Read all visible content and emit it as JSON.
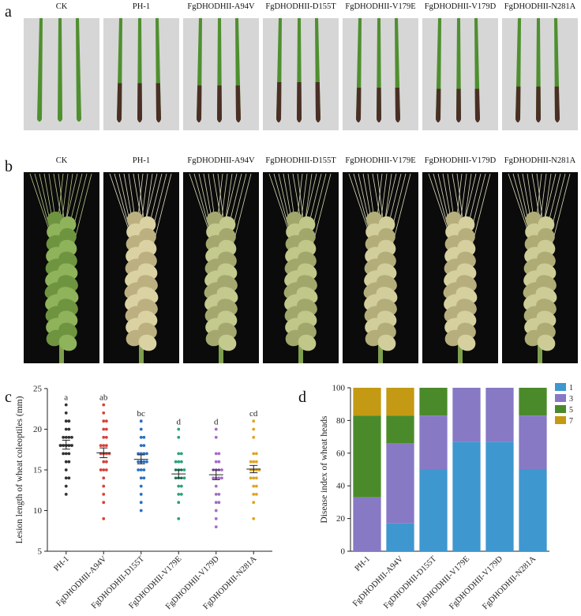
{
  "panels": {
    "a": "a",
    "b": "b",
    "c": "c",
    "d": "d"
  },
  "treatments": [
    "CK",
    "PH-1",
    "FgDHODHII-A94V",
    "FgDHODHII-D155T",
    "FgDHODHII-V179E",
    "FgDHODHII-V179D",
    "FgDHODHII-N281A"
  ],
  "colors": {
    "coleoptile_bg": "#d6d6d6",
    "spike_bg": "#0b0b0b",
    "level1": "#3f97cf",
    "level3": "#8779c4",
    "level5": "#4b8a2b",
    "level7": "#c49a14"
  },
  "coleoptile_lesion": [
    0,
    0.42,
    0.4,
    0.43,
    0.38,
    0.37,
    0.39
  ],
  "spike_bleaching": [
    0.0,
    0.85,
    0.6,
    0.55,
    0.75,
    0.8,
    0.7
  ],
  "chart_data": [
    {
      "type": "scatter",
      "title": "",
      "xlabel": "",
      "ylabel": "Lesion length of wheat coleoptiles (mm)",
      "ylim": [
        5,
        25
      ],
      "yticks": [
        5,
        10,
        15,
        20,
        25
      ],
      "categories": [
        "PH-1",
        "FgDHODHII-A94V",
        "FgDHODHII-D155T",
        "FgDHODHII-V179E",
        "FgDHODHII-V179D",
        "FgDHODHII-N281A"
      ],
      "colors": [
        "#333333",
        "#d9403a",
        "#2b6fc0",
        "#2aa37a",
        "#a56cc8",
        "#e0a420"
      ],
      "letters": [
        "a",
        "ab",
        "bc",
        "d",
        "d",
        "cd"
      ],
      "means": [
        18.1,
        17.1,
        16.3,
        14.5,
        14.4,
        15.1
      ],
      "sem": [
        0.55,
        0.6,
        0.55,
        0.5,
        0.6,
        0.45
      ],
      "points": [
        [
          23,
          22,
          21,
          21,
          20,
          20,
          19,
          19,
          19,
          19,
          18,
          18,
          18,
          18,
          18,
          17,
          17,
          17,
          16,
          16,
          15,
          14,
          14,
          13,
          12
        ],
        [
          23,
          22,
          21,
          21,
          20,
          20,
          19,
          19,
          18,
          18,
          18,
          17,
          17,
          17,
          17,
          16,
          16,
          15,
          15,
          15,
          14,
          13,
          12,
          11,
          9
        ],
        [
          21,
          20,
          19,
          19,
          18,
          18,
          17,
          17,
          17,
          17,
          16,
          16,
          16,
          16,
          15,
          15,
          15,
          14,
          14,
          13,
          12,
          11,
          10
        ],
        [
          20,
          19,
          17,
          17,
          16,
          16,
          16,
          15,
          15,
          15,
          15,
          14,
          14,
          14,
          14,
          13,
          13,
          12,
          12,
          11,
          9
        ],
        [
          20,
          19,
          17,
          17,
          16,
          16,
          15,
          15,
          15,
          15,
          14,
          14,
          14,
          14,
          13,
          12,
          12,
          11,
          11,
          10,
          9,
          8
        ],
        [
          21,
          20,
          19,
          17,
          17,
          16,
          16,
          16,
          15,
          15,
          15,
          15,
          14,
          14,
          14,
          13,
          13,
          12,
          12,
          11,
          9
        ]
      ]
    },
    {
      "type": "bar",
      "stacked": true,
      "title": "",
      "xlabel": "",
      "ylabel": "Disease index of wheat heads",
      "ylim": [
        0,
        100
      ],
      "yticks": [
        0,
        20,
        40,
        60,
        80,
        100
      ],
      "categories": [
        "PH-1",
        "FgDHODHII-A94V",
        "FgDHODHII-D155T",
        "FgDHODHII-V179E",
        "FgDHODHII-V179D",
        "FgDHODHII-N281A"
      ],
      "legend_position": "right",
      "series": [
        {
          "name": "1",
          "values": [
            0,
            17,
            50,
            67,
            67,
            50
          ]
        },
        {
          "name": "3",
          "values": [
            33,
            49,
            33,
            33,
            33,
            33
          ]
        },
        {
          "name": "5",
          "values": [
            50,
            17,
            17,
            0,
            0,
            17
          ]
        },
        {
          "name": "7",
          "values": [
            17,
            17,
            0,
            0,
            0,
            0
          ]
        }
      ]
    }
  ]
}
